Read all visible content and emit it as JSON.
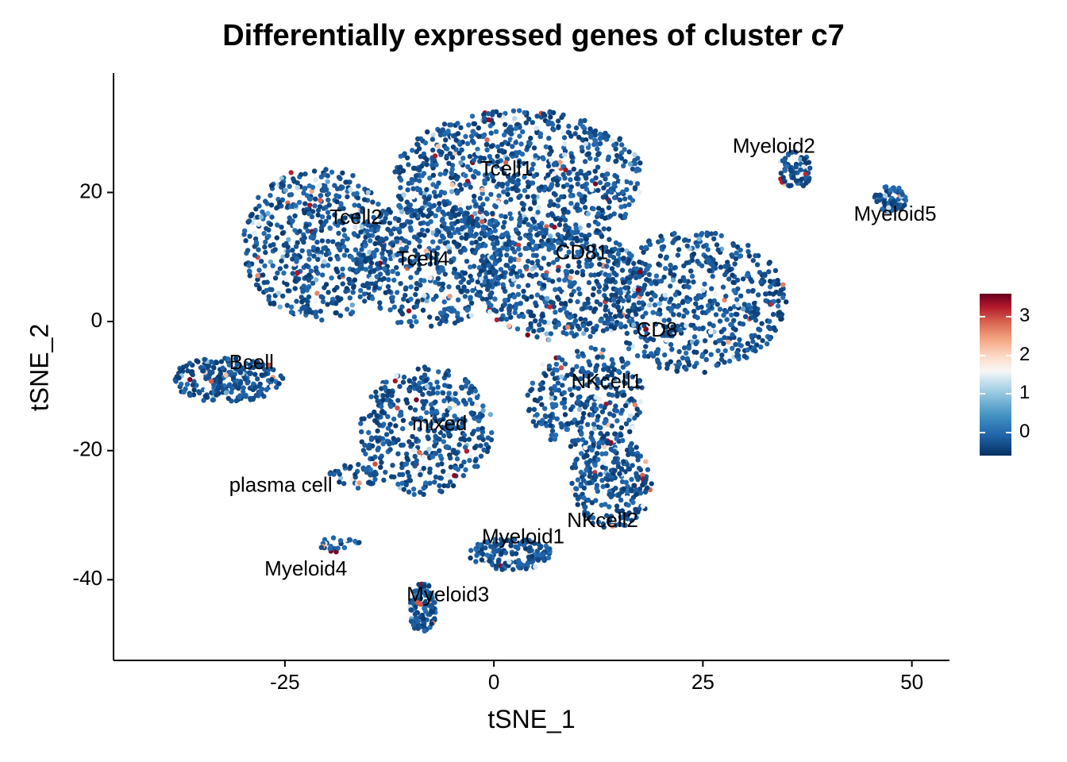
{
  "title": "Differentially expressed genes of cluster c7",
  "chart_data": {
    "type": "scatter",
    "title": "Differentially expressed genes of cluster c7",
    "xlabel": "tSNE_1",
    "ylabel": "tSNE_2",
    "xlim": [
      -45.5,
      54.5
    ],
    "ylim": [
      -52.5,
      38.5
    ],
    "xticks": [
      -25,
      0,
      25,
      50
    ],
    "xtick_labels": [
      "-25",
      "0",
      "25",
      "50"
    ],
    "yticks": [
      -40,
      -20,
      0,
      20
    ],
    "ytick_labels": [
      "-40",
      "-20",
      "0",
      "20"
    ],
    "grid": false,
    "legend": {
      "placement": "right",
      "type": "colorbar",
      "range": [
        -0.6,
        3.6
      ],
      "ticks": [
        0,
        1,
        2,
        3
      ],
      "tick_labels": [
        "0",
        "1",
        "2",
        "3"
      ],
      "colors": {
        "low": "#053061",
        "mid": "#f7f7f7",
        "high": "#67001f"
      }
    },
    "cluster_labels": [
      {
        "text": "Tcell1",
        "x": 1.5,
        "y": 23.5
      },
      {
        "text": "Tcell2",
        "x": -16.5,
        "y": 16
      },
      {
        "text": "Tcell4",
        "x": -8.5,
        "y": 9.5
      },
      {
        "text": "CD81",
        "x": 10.5,
        "y": 10.5
      },
      {
        "text": "CD8",
        "x": 19.5,
        "y": -1.5
      },
      {
        "text": "Bcell",
        "x": -29,
        "y": -6.5
      },
      {
        "text": "NKcell1",
        "x": 13.5,
        "y": -9.5
      },
      {
        "text": "mixed",
        "x": -6.5,
        "y": -16
      },
      {
        "text": "plasma cell",
        "x": -25.5,
        "y": -25.5
      },
      {
        "text": "NKcell2",
        "x": 13,
        "y": -31
      },
      {
        "text": "Myeloid1",
        "x": 3.5,
        "y": -33.5
      },
      {
        "text": "Myeloid4",
        "x": -22.5,
        "y": -38.5
      },
      {
        "text": "Myeloid3",
        "x": -5.5,
        "y": -42.5
      },
      {
        "text": "Myeloid2",
        "x": 33.5,
        "y": 27
      },
      {
        "text": "Myeloid5",
        "x": 48,
        "y": 16.5
      }
    ],
    "point_regions": [
      {
        "cluster": "Tcell1",
        "cx": 3,
        "cy": 22,
        "rx": 15,
        "ry": 11,
        "n": 900
      },
      {
        "cluster": "Tcell2",
        "cx": -21,
        "cy": 12,
        "rx": 9,
        "ry": 12,
        "n": 550
      },
      {
        "cluster": "Tcell4",
        "cx": -8,
        "cy": 9,
        "rx": 9,
        "ry": 10,
        "n": 450
      },
      {
        "cluster": "CD81",
        "cx": 8,
        "cy": 6,
        "rx": 10,
        "ry": 9,
        "n": 500
      },
      {
        "cluster": "CD8",
        "cx": 24,
        "cy": 3,
        "rx": 11,
        "ry": 11,
        "n": 600
      },
      {
        "cluster": "NKcell1",
        "cx": 11,
        "cy": -12,
        "rx": 7,
        "ry": 8,
        "n": 300
      },
      {
        "cluster": "NKcell2",
        "cx": 14,
        "cy": -25,
        "rx": 5,
        "ry": 7,
        "n": 250
      },
      {
        "cluster": "mixed",
        "cx": -8,
        "cy": -17,
        "rx": 8,
        "ry": 10,
        "n": 450
      },
      {
        "cluster": "Bcell",
        "cx": -32,
        "cy": -9,
        "rx": 7,
        "ry": 3.5,
        "n": 250
      },
      {
        "cluster": "plasma cell",
        "cx": -17,
        "cy": -24,
        "rx": 3,
        "ry": 2,
        "n": 40
      },
      {
        "cluster": "Myeloid1",
        "cx": 2,
        "cy": -36,
        "rx": 5,
        "ry": 2.5,
        "n": 150
      },
      {
        "cluster": "Myeloid3",
        "cx": -8.5,
        "cy": -44.5,
        "rx": 1.6,
        "ry": 4,
        "n": 120
      },
      {
        "cluster": "Myeloid4",
        "cx": -18.5,
        "cy": -34.5,
        "rx": 2.5,
        "ry": 1.2,
        "n": 25
      },
      {
        "cluster": "Myeloid2",
        "cx": 36,
        "cy": 23.5,
        "rx": 2,
        "ry": 3,
        "n": 70
      },
      {
        "cluster": "Myeloid5",
        "cx": 47.5,
        "cy": 19,
        "rx": 2,
        "ry": 2,
        "n": 60
      }
    ],
    "value_range": [
      -0.6,
      3.6
    ],
    "typical_value": 0
  }
}
